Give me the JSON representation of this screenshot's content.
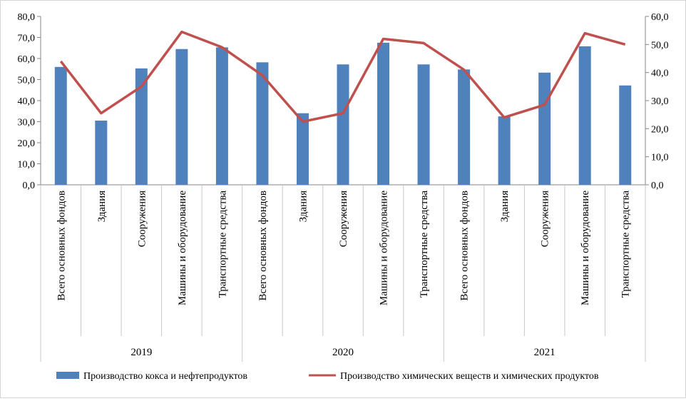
{
  "chart_data": {
    "type": "bar+line",
    "groups": [
      {
        "label": "2019",
        "categories": [
          "Всего основных фондов",
          "Здания",
          "Сооружения",
          "Машины и оборудование",
          "Транспортные средства"
        ]
      },
      {
        "label": "2020",
        "categories": [
          "Всего основных фондов",
          "Здания",
          "Сооружения",
          "Машины и оборудование",
          "Транспортные средства"
        ]
      },
      {
        "label": "2021",
        "categories": [
          "Всего основных фондов",
          "Здания",
          "Сооружения",
          "Машины и оборудование",
          "Транспортные средства"
        ]
      }
    ],
    "series": [
      {
        "name": "Производство кокса и нефтепродуктов",
        "kind": "bar",
        "axis": "left",
        "color": "#4F81BD",
        "values": [
          56.0,
          30.5,
          55.3,
          64.5,
          65.3,
          58.2,
          34.0,
          57.2,
          67.5,
          57.2,
          54.8,
          32.5,
          53.3,
          65.8,
          47.2
        ]
      },
      {
        "name": "Производство химических веществ и химических продуктов",
        "kind": "line",
        "axis": "right",
        "color": "#C0504D",
        "values": [
          44.0,
          25.5,
          35.0,
          54.5,
          49.0,
          39.0,
          22.5,
          25.5,
          52.0,
          50.5,
          41.0,
          24.0,
          28.5,
          54.0,
          50.0
        ]
      }
    ],
    "y_left": {
      "min": 0,
      "max": 80,
      "step": 10,
      "ticks": [
        "0,0",
        "10,0",
        "20,0",
        "30,0",
        "40,0",
        "50,0",
        "60,0",
        "70,0",
        "80,0"
      ]
    },
    "y_right": {
      "min": 0,
      "max": 60,
      "step": 10,
      "ticks": [
        "0,0",
        "10,0",
        "20,0",
        "30,0",
        "40,0",
        "50,0",
        "60,0"
      ]
    },
    "grid": false,
    "legend": "bottom"
  }
}
